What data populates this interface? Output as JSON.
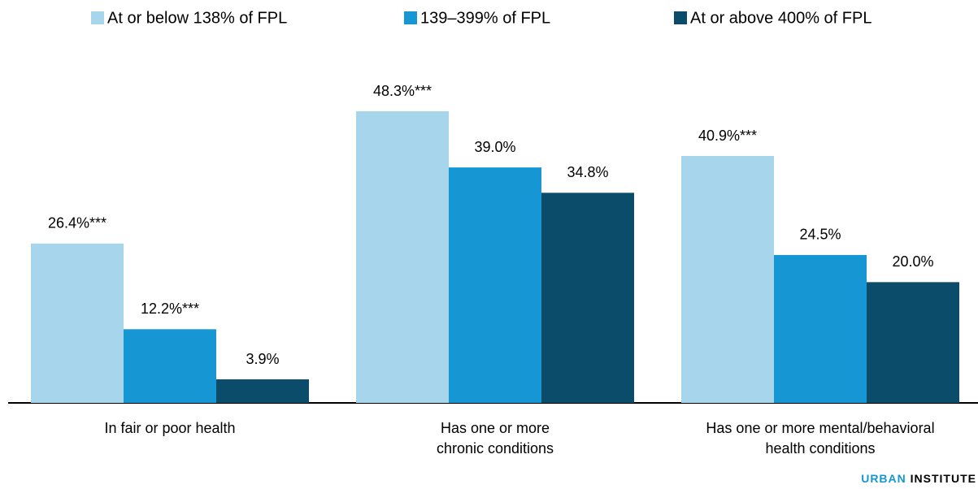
{
  "chart_data": {
    "type": "bar",
    "categories": [
      [
        "In fair or poor health"
      ],
      [
        "Has one or more",
        "chronic conditions"
      ],
      [
        "Has one or more mental/behavioral",
        "health conditions"
      ]
    ],
    "series": [
      {
        "name": "At or below 138% of FPL",
        "color": "#a6d5ec",
        "values": [
          26.4,
          48.3,
          40.9
        ],
        "value_labels": [
          "26.4%***",
          "48.3%***",
          "40.9%***"
        ]
      },
      {
        "name": "139–399% of FPL",
        "color": "#1696d2",
        "values": [
          12.2,
          39.0,
          24.5
        ],
        "value_labels": [
          "12.2%***",
          "39.0%",
          "24.5%"
        ]
      },
      {
        "name": "At or above 400% of FPL",
        "color": "#0a4c6a",
        "values": [
          3.9,
          34.8,
          20.0
        ],
        "value_labels": [
          "3.9%",
          "34.8%",
          "20.0%"
        ]
      }
    ],
    "legend": "top",
    "branding": {
      "first": "URBAN",
      "second": "INSTITUTE"
    }
  }
}
